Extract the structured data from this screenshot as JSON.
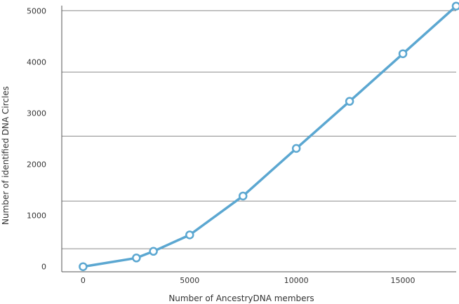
{
  "chart_data": {
    "type": "line",
    "title": "",
    "xlabel": "Number of AncestryDNA members",
    "ylabel": "Number of identified DNA Circles",
    "xlim": [
      -1000,
      17500
    ],
    "ylim": [
      -100,
      5100
    ],
    "x_ticks": [
      0,
      5000,
      10000,
      15000
    ],
    "y_ticks": [
      0,
      1000,
      2000,
      3000,
      4000,
      5000
    ],
    "grid": "horizontal",
    "legend": "none",
    "colors": {
      "line": "#5ba7d1",
      "marker_fill": "#ffffff",
      "grid": "#8a8a8a",
      "axis": "#555555"
    },
    "series": [
      {
        "x": [
          0,
          2500,
          3300,
          5000,
          7500,
          10000,
          12500,
          15000,
          17500
        ],
        "y": [
          0,
          170,
          300,
          620,
          1380,
          2310,
          3230,
          4160,
          5090
        ]
      }
    ]
  }
}
